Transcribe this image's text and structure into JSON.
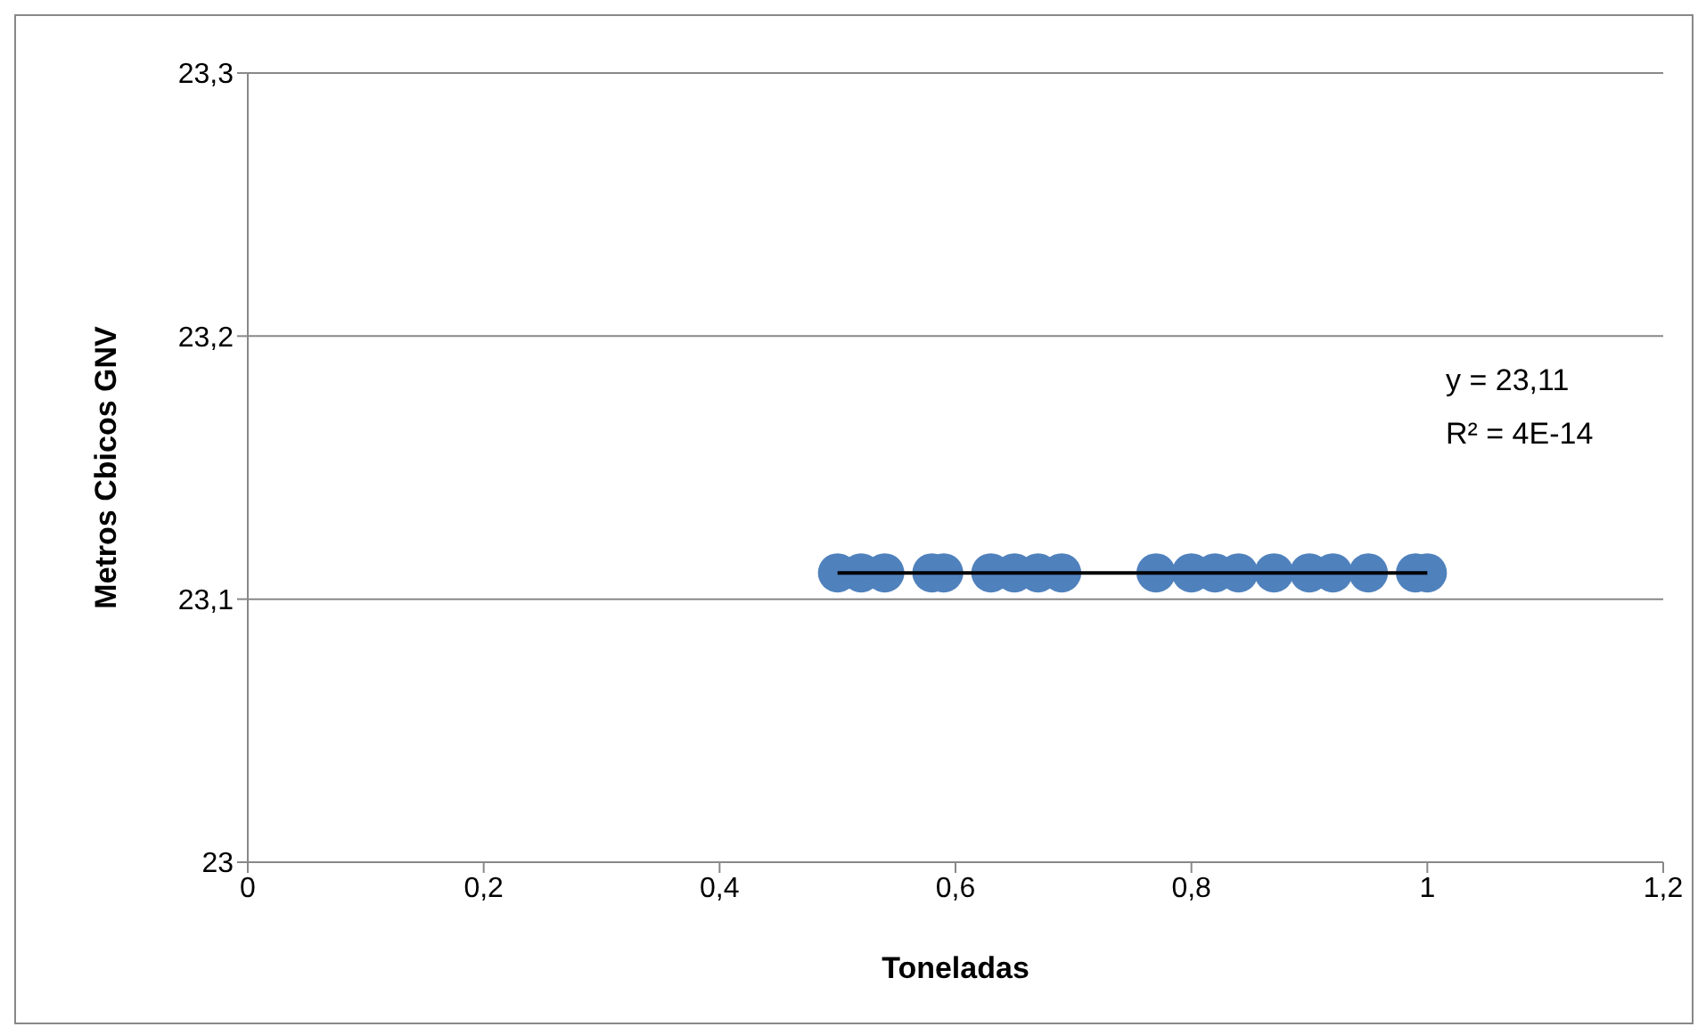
{
  "chart_data": {
    "type": "scatter",
    "xlabel": "Toneladas",
    "ylabel": "Metros Cbicos GNV",
    "xlim": [
      0,
      1.2
    ],
    "xticks": [
      0,
      {
        "value": 0.2,
        "label": "0,2"
      },
      {
        "value": 0.4,
        "label": "0,4"
      },
      {
        "value": 0.6,
        "label": "0,6"
      },
      {
        "value": 0.8,
        "label": "0,8"
      },
      1,
      {
        "value": 1.2,
        "label": "1,2"
      }
    ],
    "ylim": [
      23,
      23.3
    ],
    "yticks": [
      23,
      {
        "value": 23.1,
        "label": "23,1"
      },
      {
        "value": 23.2,
        "label": "23,2"
      },
      {
        "value": 23.3,
        "label": "23,3"
      }
    ],
    "grid": "y",
    "legend": false,
    "annotations": [
      "y = 23,11",
      "R² = 4E-14"
    ],
    "series": [
      {
        "marker": "circle",
        "color": "#4f81bd",
        "x": [
          0.5,
          0.52,
          0.54,
          0.58,
          0.59,
          0.63,
          0.65,
          0.67,
          0.69,
          0.77,
          0.8,
          0.82,
          0.84,
          0.87,
          0.9,
          0.92,
          0.95,
          0.99,
          1.0
        ],
        "values": [
          23.11,
          23.11,
          23.11,
          23.11,
          23.11,
          23.11,
          23.11,
          23.11,
          23.11,
          23.11,
          23.11,
          23.11,
          23.11,
          23.11,
          23.11,
          23.11,
          23.11,
          23.11,
          23.11
        ]
      },
      {
        "type": "line",
        "color": "#000000",
        "x": [
          0.5,
          1.0
        ],
        "values": [
          23.11,
          23.11
        ]
      }
    ]
  }
}
